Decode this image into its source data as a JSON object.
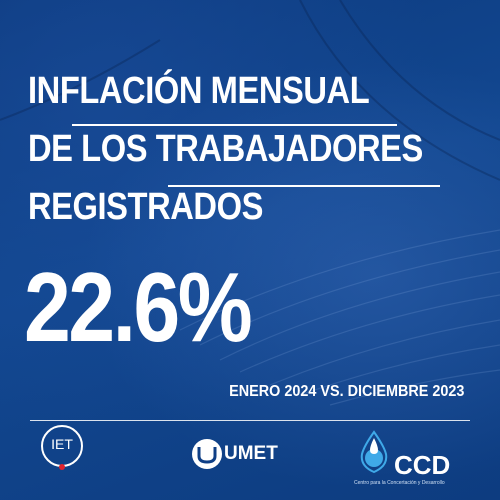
{
  "headline": {
    "line1": "INFLACIÓN MENSUAL",
    "line2": "DE LOS TRABAJADORES",
    "line3": "REGISTRADOS"
  },
  "value": "22.6%",
  "period": "ENERO 2024 VS. DICIEMBRE 2023",
  "logos": {
    "iet": "IET",
    "umet": "UMET",
    "ccd": "CCD",
    "ccd_subtitle": "Centro para la Concertación y Desarrollo"
  },
  "colors": {
    "background": "#0f3f86",
    "text": "#ffffff",
    "accent_red": "#e0232e",
    "ccd_light_blue": "#3fa9e8"
  }
}
